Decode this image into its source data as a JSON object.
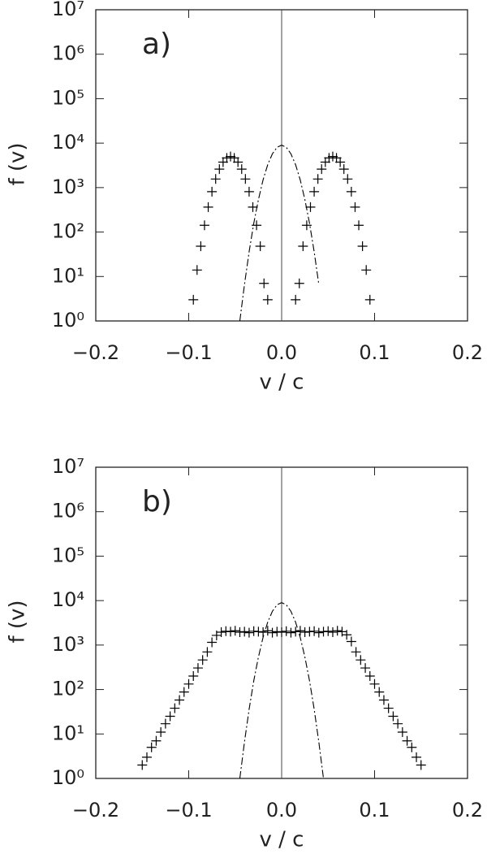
{
  "chart_data": [
    {
      "type": "scatter",
      "panel_label": "a)",
      "x_label": "v / c",
      "y_label": "f (v)",
      "xlim": [
        -0.2,
        0.2
      ],
      "xticks": [
        {
          "value": -0.2,
          "label": "−0.2"
        },
        {
          "value": -0.1,
          "label": "−0.1"
        },
        {
          "value": 0,
          "label": "0.0"
        },
        {
          "value": 0.1,
          "label": "0.1"
        },
        {
          "value": 0.2,
          "label": "0.2"
        }
      ],
      "ylim": [
        1,
        10000000
      ],
      "yscale": "log",
      "yticks": [
        {
          "value": 1,
          "label": "10⁰"
        },
        {
          "value": 10,
          "label": "10¹"
        },
        {
          "value": 100,
          "label": "10²"
        },
        {
          "value": 1000,
          "label": "10³"
        },
        {
          "value": 10000,
          "label": "10⁴"
        },
        {
          "value": 100000,
          "label": "10⁵"
        },
        {
          "value": 1000000,
          "label": "10⁶"
        },
        {
          "value": 10000000,
          "label": "10⁷"
        }
      ],
      "vlines": [
        0
      ],
      "series": [
        {
          "type": "scatter",
          "marker": "+",
          "color": "#000000",
          "x": [
            -0.095,
            -0.091,
            -0.087,
            -0.083,
            -0.079,
            -0.075,
            -0.071,
            -0.067,
            -0.063,
            -0.059,
            -0.055,
            -0.051,
            -0.047,
            -0.043,
            -0.039,
            -0.035,
            -0.031,
            -0.027,
            -0.023,
            -0.019,
            -0.015,
            0.015,
            0.019,
            0.023,
            0.027,
            0.031,
            0.035,
            0.039,
            0.043,
            0.047,
            0.051,
            0.055,
            0.059,
            0.063,
            0.067,
            0.071,
            0.075,
            0.079,
            0.083,
            0.087,
            0.091,
            0.095
          ],
          "values": [
            3,
            14,
            48,
            142,
            364,
            810,
            1560,
            2600,
            3740,
            4650,
            5000,
            4650,
            3740,
            2600,
            1560,
            810,
            364,
            142,
            48,
            7,
            3,
            3,
            7,
            48,
            142,
            364,
            810,
            1560,
            2600,
            3740,
            4650,
            5000,
            4650,
            3740,
            2600,
            1560,
            810,
            364,
            142,
            48,
            14,
            3
          ]
        },
        {
          "type": "line",
          "linestyle": "dashdot",
          "color": "#000000",
          "x": [
            -0.045,
            -0.04,
            -0.035,
            -0.03,
            -0.025,
            -0.02,
            -0.015,
            -0.01,
            -0.005,
            0,
            0.005,
            0.01,
            0.015,
            0.02,
            0.025,
            0.03,
            0.035,
            0.04
          ],
          "values": [
            1,
            6.6,
            36,
            157,
            537,
            1487,
            3268,
            5734,
            8040,
            9000,
            8040,
            5734,
            3268,
            1487,
            537,
            157,
            36,
            6.6
          ]
        }
      ]
    },
    {
      "type": "scatter",
      "panel_label": "b)",
      "x_label": "v / c",
      "y_label": "f (v)",
      "xlim": [
        -0.2,
        0.2
      ],
      "xticks": [
        {
          "value": -0.2,
          "label": "−0.2"
        },
        {
          "value": -0.1,
          "label": "−0.1"
        },
        {
          "value": 0,
          "label": "0.0"
        },
        {
          "value": 0.1,
          "label": "0.1"
        },
        {
          "value": 0.2,
          "label": "0.2"
        }
      ],
      "ylim": [
        1,
        10000000
      ],
      "yscale": "log",
      "yticks": [
        {
          "value": 1,
          "label": "10⁰"
        },
        {
          "value": 10,
          "label": "10¹"
        },
        {
          "value": 100,
          "label": "10²"
        },
        {
          "value": 1000,
          "label": "10³"
        },
        {
          "value": 10000,
          "label": "10⁴"
        },
        {
          "value": 100000,
          "label": "10⁵"
        },
        {
          "value": 1000000,
          "label": "10⁶"
        },
        {
          "value": 10000000,
          "label": "10⁷"
        }
      ],
      "vlines": [
        0
      ],
      "series": [
        {
          "type": "scatter",
          "marker": "+",
          "color": "#000000",
          "x": [
            -0.15,
            -0.145,
            -0.14,
            -0.135,
            -0.13,
            -0.125,
            -0.12,
            -0.115,
            -0.11,
            -0.105,
            -0.1,
            -0.095,
            -0.09,
            -0.085,
            -0.08,
            -0.075,
            -0.07,
            -0.065,
            -0.06,
            -0.055,
            -0.05,
            -0.045,
            -0.04,
            -0.035,
            -0.03,
            -0.025,
            -0.02,
            -0.015,
            -0.01,
            -0.005,
            0,
            0.005,
            0.01,
            0.015,
            0.02,
            0.025,
            0.03,
            0.035,
            0.04,
            0.045,
            0.05,
            0.055,
            0.06,
            0.065,
            0.07,
            0.075,
            0.08,
            0.085,
            0.09,
            0.095,
            0.1,
            0.105,
            0.11,
            0.115,
            0.12,
            0.125,
            0.13,
            0.135,
            0.14,
            0.145,
            0.15
          ],
          "values": [
            2,
            3,
            5,
            7,
            11,
            17,
            25,
            38,
            58,
            88,
            133,
            201,
            305,
            462,
            700,
            1150,
            1650,
            1950,
            2050,
            2000,
            2100,
            1950,
            2000,
            1900,
            2050,
            2000,
            1950,
            2100,
            1900,
            2000,
            1950,
            2050,
            1900,
            2000,
            2100,
            1950,
            2000,
            2050,
            1900,
            2000,
            2050,
            1950,
            2100,
            2000,
            1700,
            1200,
            700,
            462,
            305,
            201,
            133,
            88,
            58,
            38,
            25,
            17,
            11,
            7,
            5,
            3,
            2
          ]
        },
        {
          "type": "line",
          "linestyle": "dashdot",
          "color": "#000000",
          "x": [
            -0.045,
            -0.04,
            -0.035,
            -0.03,
            -0.025,
            -0.02,
            -0.015,
            -0.01,
            -0.005,
            0,
            0.005,
            0.01,
            0.015,
            0.02,
            0.025,
            0.03,
            0.035,
            0.04,
            0.045
          ],
          "values": [
            1,
            6.6,
            36,
            157,
            537,
            1487,
            3268,
            5734,
            8040,
            9000,
            8040,
            5734,
            3268,
            1487,
            537,
            157,
            36,
            6.6,
            1
          ]
        }
      ]
    }
  ]
}
